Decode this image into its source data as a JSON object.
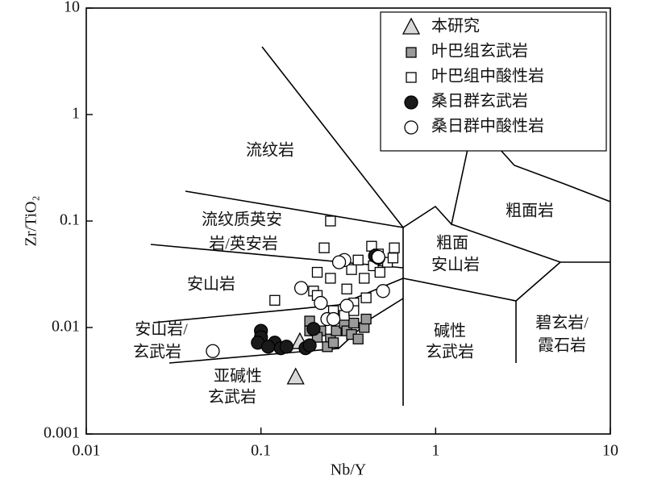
{
  "chart_data": {
    "type": "scatter",
    "x_label": "Nb/Y",
    "y_label": "Zr/TiO₂",
    "log_x": true,
    "log_y": true,
    "xlim": [
      0.01,
      10
    ],
    "ylim": [
      0.001,
      10
    ],
    "xticks": [
      0.01,
      0.1,
      1,
      10
    ],
    "yticks": [
      0.001,
      0.01,
      0.1,
      1,
      10
    ],
    "legend_position": "upper right",
    "annotations": [
      "流纹岩",
      "流纹质英安",
      "岩/英安岩",
      "安山岩",
      "安山岩/",
      "玄武岩",
      "亚碱性",
      "玄武岩",
      "碱性",
      "玄武岩",
      "粗面岩",
      "粗面",
      "安山岩",
      "碧玄岩/",
      "霞石岩"
    ],
    "series": [
      {
        "name": "本研究",
        "marker": "triangle",
        "color": "#d9d9d9",
        "x": [
          0.167,
          0.158
        ],
        "values": [
          0.0073,
          0.0034
        ]
      },
      {
        "name": "叶巴组玄武岩",
        "marker": "square",
        "color": "#9a9a9a",
        "x": [
          0.19,
          0.22,
          0.25,
          0.27,
          0.3,
          0.31,
          0.34,
          0.24,
          0.26,
          0.19,
          0.39,
          0.33,
          0.36,
          0.4,
          0.21
        ],
        "values": [
          0.0093,
          0.0093,
          0.0078,
          0.0093,
          0.011,
          0.0093,
          0.011,
          0.0066,
          0.0072,
          0.0115,
          0.01,
          0.0086,
          0.0078,
          0.012,
          0.0081
        ]
      },
      {
        "name": "叶巴组中酸性岩",
        "marker": "square",
        "color": "#ffffff",
        "x": [
          0.25,
          0.23,
          0.21,
          0.12,
          0.2,
          0.25,
          0.31,
          0.34,
          0.4,
          0.33,
          0.36,
          0.43,
          0.47,
          0.53,
          0.58,
          0.44,
          0.48,
          0.57,
          0.39,
          0.26,
          0.3,
          0.34,
          0.21
        ],
        "values": [
          0.1,
          0.056,
          0.033,
          0.018,
          0.022,
          0.029,
          0.023,
          0.017,
          0.019,
          0.035,
          0.043,
          0.058,
          0.049,
          0.041,
          0.056,
          0.038,
          0.033,
          0.045,
          0.029,
          0.0144,
          0.013,
          0.0144,
          0.02
        ]
      },
      {
        "name": "桑日群玄武岩",
        "marker": "circle",
        "color": "#1a1a1a",
        "x": [
          0.1,
          0.1,
          0.096,
          0.12,
          0.13,
          0.18,
          0.19,
          0.2,
          0.11,
          0.14,
          0.45,
          0.47
        ],
        "values": [
          0.0093,
          0.0081,
          0.0072,
          0.0072,
          0.0064,
          0.0064,
          0.0068,
          0.0097,
          0.0066,
          0.0066,
          0.047,
          0.045
        ]
      },
      {
        "name": "桑日群中酸性岩",
        "marker": "circle",
        "color": "#ffffff",
        "x": [
          0.053,
          0.17,
          0.22,
          0.24,
          0.26,
          0.31,
          0.5,
          0.3,
          0.47,
          0.28
        ],
        "values": [
          0.006,
          0.0235,
          0.017,
          0.012,
          0.012,
          0.016,
          0.022,
          0.043,
          0.046,
          0.041
        ]
      }
    ]
  }
}
